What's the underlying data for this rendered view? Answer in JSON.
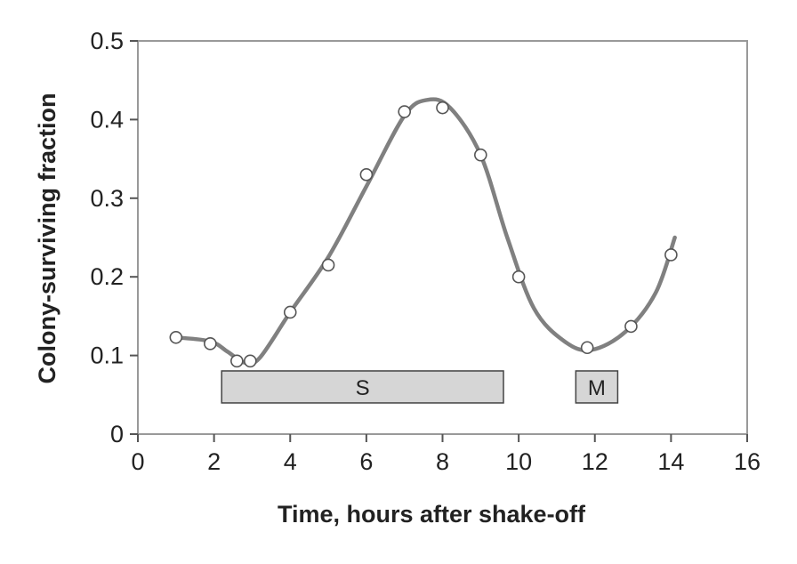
{
  "chart_data": {
    "type": "line",
    "title": "",
    "xlabel": "Time, hours after shake-off",
    "ylabel": "Colony-surviving fraction",
    "xlim": [
      0,
      16
    ],
    "ylim": [
      0,
      0.5
    ],
    "x_ticks": [
      0,
      2,
      4,
      6,
      8,
      10,
      12,
      14,
      16
    ],
    "y_ticks": [
      0,
      0.1,
      0.2,
      0.3,
      0.4,
      0.5
    ],
    "x_tick_labels": [
      "0",
      "2",
      "4",
      "6",
      "8",
      "10",
      "12",
      "14",
      "16"
    ],
    "y_tick_labels": [
      "0",
      "0.1",
      "0.2",
      "0.3",
      "0.4",
      "0.5"
    ],
    "grid": false,
    "legend": "none",
    "series": [
      {
        "points": [
          {
            "x": 1.0,
            "y": 0.123
          },
          {
            "x": 1.9,
            "y": 0.115
          },
          {
            "x": 2.6,
            "y": 0.093
          },
          {
            "x": 2.95,
            "y": 0.093
          },
          {
            "x": 4.0,
            "y": 0.155
          },
          {
            "x": 5.0,
            "y": 0.215
          },
          {
            "x": 6.0,
            "y": 0.33
          },
          {
            "x": 7.0,
            "y": 0.41
          },
          {
            "x": 8.0,
            "y": 0.415
          },
          {
            "x": 9.0,
            "y": 0.355
          },
          {
            "x": 10.0,
            "y": 0.2
          },
          {
            "x": 11.8,
            "y": 0.11
          },
          {
            "x": 12.95,
            "y": 0.137
          },
          {
            "x": 14.0,
            "y": 0.228
          }
        ],
        "curve": [
          {
            "x": 1.0,
            "y": 0.123
          },
          {
            "x": 1.9,
            "y": 0.118
          },
          {
            "x": 2.35,
            "y": 0.105
          },
          {
            "x": 2.8,
            "y": 0.091
          },
          {
            "x": 3.2,
            "y": 0.097
          },
          {
            "x": 4.0,
            "y": 0.155
          },
          {
            "x": 5.0,
            "y": 0.225
          },
          {
            "x": 6.0,
            "y": 0.315
          },
          {
            "x": 7.0,
            "y": 0.405
          },
          {
            "x": 7.6,
            "y": 0.425
          },
          {
            "x": 8.2,
            "y": 0.415
          },
          {
            "x": 9.0,
            "y": 0.355
          },
          {
            "x": 9.7,
            "y": 0.25
          },
          {
            "x": 10.4,
            "y": 0.16
          },
          {
            "x": 11.2,
            "y": 0.118
          },
          {
            "x": 11.9,
            "y": 0.107
          },
          {
            "x": 12.8,
            "y": 0.13
          },
          {
            "x": 13.6,
            "y": 0.18
          },
          {
            "x": 14.1,
            "y": 0.25
          }
        ]
      }
    ],
    "phases": [
      {
        "label": "S",
        "x_start": 2.2,
        "x_end": 9.6,
        "y_center": 0.06
      },
      {
        "label": "M",
        "x_start": 11.5,
        "x_end": 12.6,
        "y_center": 0.06
      }
    ],
    "colors": {
      "curve": "#808080",
      "marker_fill": "#ffffff",
      "marker_stroke": "#555555",
      "axes": "#999999",
      "phase_fill": "#d6d6d6",
      "phase_stroke": "#444444"
    }
  }
}
